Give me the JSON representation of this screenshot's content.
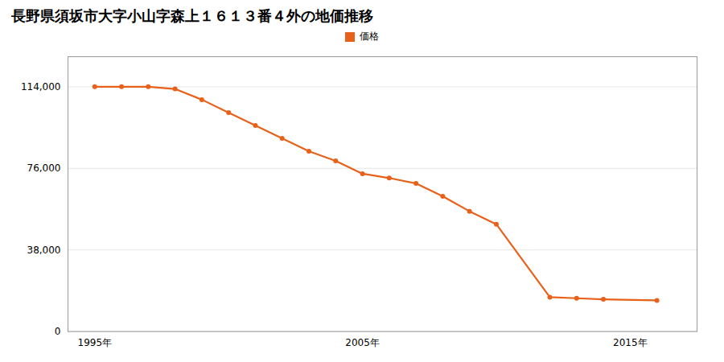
{
  "chart_data": {
    "type": "line",
    "title": "長野県須坂市大字小山字森上１６１３番４外の地価推移",
    "x": [
      1995,
      1996,
      1997,
      1998,
      1999,
      2000,
      2001,
      2002,
      2003,
      2004,
      2005,
      2006,
      2007,
      2008,
      2009,
      2010,
      2012,
      2013,
      2014,
      2016
    ],
    "series": [
      {
        "name": "価格",
        "color": "#e8611a",
        "values": [
          114000,
          114000,
          114000,
          113000,
          108000,
          102000,
          96000,
          90000,
          84000,
          79500,
          73500,
          71500,
          69000,
          63000,
          56000,
          50000,
          16000,
          15500,
          15000,
          14500
        ]
      }
    ],
    "xlim": [
      1994.0,
      2017.5
    ],
    "xticks": [
      {
        "value": 1995,
        "label": "1995年"
      },
      {
        "value": 2005,
        "label": "2005年"
      },
      {
        "value": 2015,
        "label": "2015年"
      }
    ],
    "ylim": [
      0,
      128000
    ],
    "yticks": [
      0,
      {
        "value": 38000,
        "label": "38,000"
      },
      {
        "value": 76000,
        "label": "76,000"
      },
      {
        "value": 114000,
        "label": "114,000"
      }
    ],
    "grid": true,
    "legend": "top",
    "marker": "circle"
  }
}
